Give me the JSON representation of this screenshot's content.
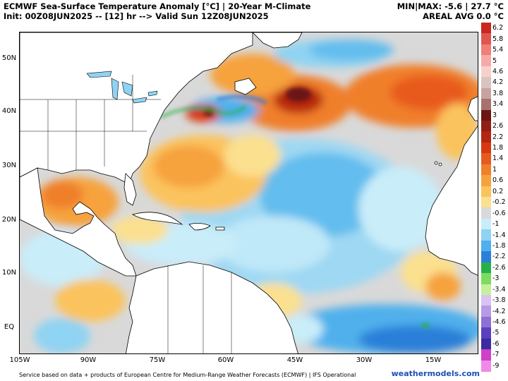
{
  "header": {
    "title_line1": "ECMWF Sea-Surface Temperature Anomaly [°C] | 20-Year M-Climate",
    "title_line2": "Init: 00Z08JUN2025 -- [12] hr --> Valid Sun 12Z08JUN2025",
    "stats_line1": "MIN|MAX: -5.6 | 27.7 °C",
    "stats_line2": "AREAL AVG 0.0 °C"
  },
  "map": {
    "lat_labels": [
      "50N",
      "40N",
      "30N",
      "20N",
      "10N",
      "EQ"
    ],
    "lon_labels": [
      "105W",
      "90W",
      "75W",
      "60W",
      "45W",
      "30W",
      "15W"
    ],
    "land_color": "#ffffff",
    "neutral_ocean_color": "#d9d9d9"
  },
  "colorbar": {
    "labels": [
      "6.2",
      "5.8",
      "5.4",
      "5",
      "4.6",
      "4.2",
      "3.8",
      "3.4",
      "3",
      "2.6",
      "2.2",
      "1.8",
      "1.4",
      "1",
      "0.6",
      "0.2",
      "-0.2",
      "-0.6",
      "-1",
      "-1.4",
      "-1.8",
      "-2.2",
      "-2.6",
      "-3",
      "-3.4",
      "-3.8",
      "-4.2",
      "-4.6",
      "-5",
      "-6",
      "-7",
      "-9"
    ],
    "colors": [
      "#c8261e",
      "#e0554d",
      "#f07f7a",
      "#f6aaa6",
      "#f7d0cc",
      "#d9c4c2",
      "#c7a39f",
      "#a7716d",
      "#6a1414",
      "#8f1e14",
      "#b5260f",
      "#d6380f",
      "#e85a1c",
      "#f07f2a",
      "#f6a23c",
      "#fbc35d",
      "#fbe08f",
      "#d9d9d9",
      "#c9edf9",
      "#8fd3f2",
      "#4fb0ec",
      "#2b7fd8",
      "#27b04a",
      "#7ddb62",
      "#c6ef9c",
      "#d9c3f2",
      "#b79ae6",
      "#8d6fd6",
      "#5a3fbe",
      "#3b2aa0",
      "#d03fc8",
      "#f08ae6"
    ]
  },
  "footer": {
    "credit": "Service based on data + products of European Centre for Medium-Range Weather Forecasts (ECMWF) | IFS Operational",
    "site": "weathermodels.com"
  }
}
